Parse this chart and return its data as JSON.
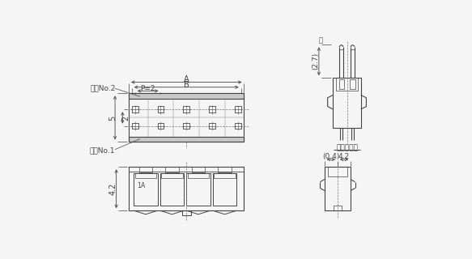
{
  "bg_color": "#f5f5f5",
  "line_color": "#444444",
  "lw": 0.8,
  "fig_width": 5.83,
  "fig_height": 3.2,
  "labels": {
    "terminal_no2": "端子No.2",
    "terminal_no1": "端子No.1",
    "terminal_insert": "端子挿入図",
    "dim_A": "A",
    "dim_B": "B",
    "dim_P": "P=2",
    "dim_5": "5",
    "dim_2": "2",
    "dim_27": "(2.7)",
    "dim_note": "注",
    "dim_04": "(0.4)",
    "dim_42_h": "4.2",
    "dim_42_w": "4.2",
    "label_1": "1",
    "label_A": "A"
  }
}
